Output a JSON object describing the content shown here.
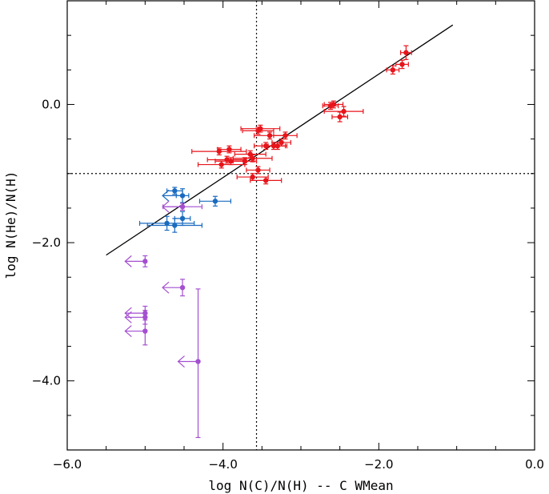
{
  "chart_data": {
    "type": "scatter",
    "xlabel": "log N(C)/N(H) -- C WMean",
    "ylabel": "log N(He)/N(H)",
    "xlim": [
      -6.0,
      0.0
    ],
    "ylim": [
      -5.0,
      1.5
    ],
    "x_ticks": [
      {
        "value": -6.0,
        "label": "−6.0"
      },
      {
        "value": -4.0,
        "label": "−4.0"
      },
      {
        "value": -2.0,
        "label": "−2.0"
      },
      {
        "value": 0.0,
        "label": "0.0"
      }
    ],
    "y_ticks": [
      {
        "value": 0.0,
        "label": "0.0"
      },
      {
        "value": -2.0,
        "label": "−2.0"
      },
      {
        "value": -4.0,
        "label": "−4.0"
      }
    ],
    "grid": false,
    "reference_lines": {
      "vertical_x": -3.57,
      "horizontal_y": -1.0
    },
    "fit_line": {
      "x": [
        -5.5,
        -1.05
      ],
      "y": [
        -2.18,
        1.15
      ]
    },
    "series": [
      {
        "color": "#e8141b",
        "points": [
          {
            "x": -1.65,
            "y": 0.75,
            "xerr": 0.07,
            "yerr": 0.1
          },
          {
            "x": -1.7,
            "y": 0.58,
            "xerr": 0.08,
            "yerr": 0.06
          },
          {
            "x": -1.82,
            "y": 0.5,
            "xerr": 0.08,
            "yerr": 0.06
          },
          {
            "x": -2.62,
            "y": -0.02,
            "xerr": 0.1,
            "yerr": 0.05
          },
          {
            "x": -2.58,
            "y": 0.0,
            "xerr": 0.12,
            "yerr": 0.05
          },
          {
            "x": -2.45,
            "y": -0.1,
            "xerr": 0.25,
            "yerr": 0.07
          },
          {
            "x": -2.5,
            "y": -0.18,
            "xerr": 0.1,
            "yerr": 0.07
          },
          {
            "x": -3.55,
            "y": -0.38,
            "xerr": 0.2,
            "yerr": 0.05
          },
          {
            "x": -3.52,
            "y": -0.35,
            "xerr": 0.25,
            "yerr": 0.05
          },
          {
            "x": -3.4,
            "y": -0.45,
            "xerr": 0.2,
            "yerr": 0.05
          },
          {
            "x": -3.2,
            "y": -0.45,
            "xerr": 0.15,
            "yerr": 0.05
          },
          {
            "x": -3.35,
            "y": -0.6,
            "xerr": 0.15,
            "yerr": 0.05
          },
          {
            "x": -3.25,
            "y": -0.55,
            "xerr": 0.12,
            "yerr": 0.05
          },
          {
            "x": -3.3,
            "y": -0.6,
            "xerr": 0.12,
            "yerr": 0.05
          },
          {
            "x": -3.45,
            "y": -0.6,
            "xerr": 0.15,
            "yerr": 0.05
          },
          {
            "x": -3.92,
            "y": -0.65,
            "xerr": 0.15,
            "yerr": 0.05
          },
          {
            "x": -4.05,
            "y": -0.68,
            "xerr": 0.35,
            "yerr": 0.05
          },
          {
            "x": -3.65,
            "y": -0.72,
            "xerr": 0.2,
            "yerr": 0.05
          },
          {
            "x": -3.62,
            "y": -0.78,
            "xerr": 0.25,
            "yerr": 0.05
          },
          {
            "x": -3.72,
            "y": -0.82,
            "xerr": 0.15,
            "yerr": 0.05
          },
          {
            "x": -3.95,
            "y": -0.8,
            "xerr": 0.25,
            "yerr": 0.05
          },
          {
            "x": -3.9,
            "y": -0.82,
            "xerr": 0.2,
            "yerr": 0.05
          },
          {
            "x": -4.02,
            "y": -0.87,
            "xerr": 0.3,
            "yerr": 0.05
          },
          {
            "x": -3.55,
            "y": -0.95,
            "xerr": 0.15,
            "yerr": 0.05
          },
          {
            "x": -3.62,
            "y": -1.05,
            "xerr": 0.2,
            "yerr": 0.05
          },
          {
            "x": -3.45,
            "y": -1.1,
            "xerr": 0.2,
            "yerr": 0.05
          }
        ]
      },
      {
        "color": "#1a6bbf",
        "points": [
          {
            "x": -4.62,
            "y": -1.25,
            "xerr": 0.1,
            "yerr": 0.05
          },
          {
            "x": -4.52,
            "y": -1.32,
            "xerr": 0.08,
            "yerr": 0.1,
            "upper_limit_x": true
          },
          {
            "x": -4.1,
            "y": -1.4,
            "xerr": 0.2,
            "yerr": 0.07
          },
          {
            "x": -4.52,
            "y": -1.65,
            "xerr": 0.1,
            "yerr": 0.1
          },
          {
            "x": -4.72,
            "y": -1.72,
            "xerr": 0.35,
            "yerr": 0.1
          },
          {
            "x": -4.62,
            "y": -1.75,
            "xerr": 0.35,
            "yerr": 0.1
          }
        ]
      },
      {
        "color": "#a44fd0",
        "points": [
          {
            "x": -4.52,
            "y": -1.48,
            "xerr": 0.25,
            "yerr": 0.05,
            "upper_limit_x": true
          },
          {
            "x": -5.0,
            "y": -2.27,
            "yerr": 0.08,
            "upper_limit_x": true
          },
          {
            "x": -4.52,
            "y": -2.65,
            "yerr": 0.12,
            "upper_limit_x": true
          },
          {
            "x": -5.0,
            "y": -3.02,
            "yerr": 0.1,
            "upper_limit_x": true
          },
          {
            "x": -5.0,
            "y": -3.08,
            "yerr": 0.1,
            "upper_limit_x": true
          },
          {
            "x": -5.0,
            "y": -3.28,
            "yerr": 0.2,
            "upper_limit_x": true
          },
          {
            "x": -4.32,
            "y": -3.72,
            "yerr_low": 1.1,
            "yerr_high": 1.05,
            "upper_limit_x": true
          }
        ]
      }
    ]
  }
}
